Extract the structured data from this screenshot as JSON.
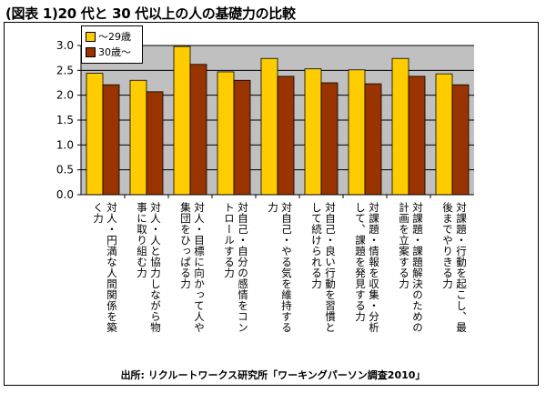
{
  "title": "(図表 1)20 代と 30 代以上の人の基礎力の比較",
  "source": "出所: リクルートワークス研究所「ワーキングパーソン調査2010」",
  "colors": {
    "series1": "#FFCC00",
    "series2": "#993300",
    "plot_bg": "#C0C0C0"
  },
  "chart_data": {
    "type": "bar",
    "title": "(図表 1)20 代と 30 代以上の人の基礎力の比較",
    "xlabel": "",
    "ylabel": "",
    "ylim": [
      0,
      3.0
    ],
    "yticks": [
      "0.0",
      "0.5",
      "1.0",
      "1.5",
      "2.0",
      "2.5",
      "3.0"
    ],
    "grid": true,
    "legend_position": "top-left",
    "categories": [
      "対人・円満な人間関係を築く力",
      "対人・人と協力しながら物事に取り組む力",
      "対人・目標に向かって人や集団をひっぱる力",
      "対自己・自分の感情をコントロールする力",
      "対自己・やる気を維持する力",
      "対自己・良い行動を習慣として続けられる力",
      "対課題・情報を収集・分析して、課題を発見する力",
      "対課題・課題解決のための計画を立案する力",
      "対課題・行動を起こし、最後までやりきる力"
    ],
    "category_labels": [
      "対人・円満な人間関係を築\nく力",
      "対人・人と協力しながら物\n事に取り組む力",
      "対人・目標に向かって人や\n集団をひっぱる力",
      "対自己・自分の感情をコン\nトロールする力",
      "対自己・やる気を維持する\n力",
      "対自己・良い行動を習慣と\nして続けられる力",
      "対課題・情報を収集・分析\nして、課題を発見する力",
      "対課題・課題解決のための\n計画を立案する力",
      "対課題・行動を起こし、最\n後までやりきる力"
    ],
    "series": [
      {
        "name": "～29歳",
        "values": [
          2.44,
          2.3,
          2.98,
          2.47,
          2.74,
          2.53,
          2.51,
          2.74,
          2.43
        ]
      },
      {
        "name": "30歳～",
        "values": [
          2.21,
          2.07,
          2.62,
          2.3,
          2.38,
          2.25,
          2.23,
          2.38,
          2.21
        ]
      }
    ]
  }
}
